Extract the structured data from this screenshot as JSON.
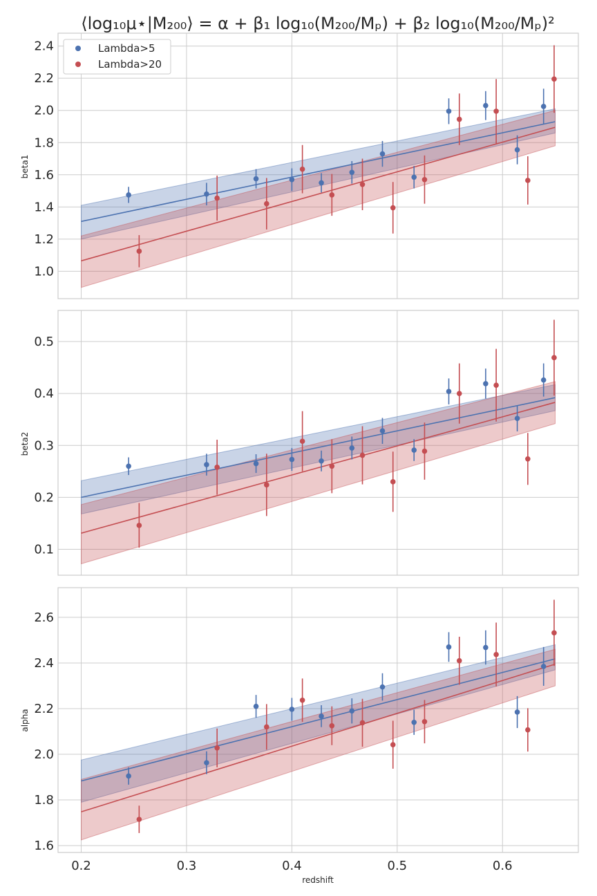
{
  "title": "⟨log₁₀μ⋆|M₂₀₀⟩ = α + β₁ log₁₀(M₂₀₀/Mₚ) + β₂ log₁₀(M₂₀₀/Mₚ)²",
  "xlabel": "redshift",
  "colors": {
    "blue": "#4c72b0",
    "red": "#c44e52",
    "grid": "#cccccc",
    "frame": "#cccccc"
  },
  "legend": {
    "position": "upper-left",
    "entries": [
      "Lambda>5",
      "Lambda>20"
    ]
  },
  "chart_data": [
    {
      "type": "scatter",
      "ylabel": "beta1",
      "xlim": [
        0.178,
        0.672
      ],
      "ylim": [
        0.83,
        2.48
      ],
      "xticks": [
        0.2,
        0.3,
        0.4,
        0.5,
        0.6
      ],
      "yticks": [
        1.0,
        1.2,
        1.4,
        1.6,
        1.8,
        2.0,
        2.2,
        2.4
      ],
      "series": [
        {
          "name": "Lambda>5",
          "color": "blue",
          "points": [
            {
              "x": 0.245,
              "y": 1.475,
              "err": 0.05
            },
            {
              "x": 0.319,
              "y": 1.48,
              "err": 0.07
            },
            {
              "x": 0.366,
              "y": 1.575,
              "err": 0.06
            },
            {
              "x": 0.4,
              "y": 1.57,
              "err": 0.07
            },
            {
              "x": 0.428,
              "y": 1.55,
              "err": 0.06
            },
            {
              "x": 0.457,
              "y": 1.615,
              "err": 0.07
            },
            {
              "x": 0.486,
              "y": 1.73,
              "err": 0.08
            },
            {
              "x": 0.516,
              "y": 1.585,
              "err": 0.07
            },
            {
              "x": 0.549,
              "y": 1.995,
              "err": 0.08
            },
            {
              "x": 0.584,
              "y": 2.03,
              "err": 0.09
            },
            {
              "x": 0.614,
              "y": 1.755,
              "err": 0.09
            },
            {
              "x": 0.639,
              "y": 2.025,
              "err": 0.11
            }
          ],
          "fit": {
            "x": [
              0.2,
              0.65
            ],
            "y": [
              1.31,
              1.93
            ]
          },
          "band": {
            "lower": [
              1.2,
              1.86
            ],
            "upper": [
              1.41,
              2.01
            ]
          }
        },
        {
          "name": "Lambda>20",
          "color": "red",
          "points": [
            {
              "x": 0.255,
              "y": 1.125,
              "err": 0.1
            },
            {
              "x": 0.329,
              "y": 1.455,
              "err": 0.14
            },
            {
              "x": 0.376,
              "y": 1.42,
              "err": 0.16
            },
            {
              "x": 0.41,
              "y": 1.635,
              "err": 0.15
            },
            {
              "x": 0.438,
              "y": 1.475,
              "err": 0.13
            },
            {
              "x": 0.467,
              "y": 1.54,
              "err": 0.16
            },
            {
              "x": 0.496,
              "y": 1.395,
              "err": 0.16
            },
            {
              "x": 0.526,
              "y": 1.57,
              "err": 0.15
            },
            {
              "x": 0.559,
              "y": 1.945,
              "err": 0.16
            },
            {
              "x": 0.594,
              "y": 1.995,
              "err": 0.2
            },
            {
              "x": 0.624,
              "y": 1.565,
              "err": 0.15
            },
            {
              "x": 0.649,
              "y": 2.195,
              "err": 0.21
            }
          ],
          "fit": {
            "x": [
              0.2,
              0.65
            ],
            "y": [
              1.065,
              1.895
            ]
          },
          "band": {
            "lower": [
              0.9,
              1.78
            ],
            "upper": [
              1.22,
              2.0
            ]
          }
        }
      ]
    },
    {
      "type": "scatter",
      "ylabel": "beta2",
      "xlim": [
        0.178,
        0.672
      ],
      "ylim": [
        0.05,
        0.56
      ],
      "xticks": [
        0.2,
        0.3,
        0.4,
        0.5,
        0.6
      ],
      "yticks": [
        0.1,
        0.2,
        0.3,
        0.4,
        0.5
      ],
      "series": [
        {
          "name": "Lambda>5",
          "color": "blue",
          "points": [
            {
              "x": 0.245,
              "y": 0.26,
              "err": 0.017
            },
            {
              "x": 0.319,
              "y": 0.263,
              "err": 0.021
            },
            {
              "x": 0.366,
              "y": 0.265,
              "err": 0.018
            },
            {
              "x": 0.4,
              "y": 0.273,
              "err": 0.022
            },
            {
              "x": 0.428,
              "y": 0.27,
              "err": 0.02
            },
            {
              "x": 0.457,
              "y": 0.295,
              "err": 0.022
            },
            {
              "x": 0.486,
              "y": 0.328,
              "err": 0.025
            },
            {
              "x": 0.516,
              "y": 0.291,
              "err": 0.021
            },
            {
              "x": 0.549,
              "y": 0.404,
              "err": 0.025
            },
            {
              "x": 0.584,
              "y": 0.419,
              "err": 0.029
            },
            {
              "x": 0.614,
              "y": 0.352,
              "err": 0.025
            },
            {
              "x": 0.639,
              "y": 0.426,
              "err": 0.032
            }
          ],
          "fit": {
            "x": [
              0.2,
              0.65
            ],
            "y": [
              0.2,
              0.392
            ]
          },
          "band": {
            "lower": [
              0.168,
              0.367
            ],
            "upper": [
              0.232,
              0.417
            ]
          }
        },
        {
          "name": "Lambda>20",
          "color": "red",
          "points": [
            {
              "x": 0.255,
              "y": 0.146,
              "err": 0.043
            },
            {
              "x": 0.329,
              "y": 0.258,
              "err": 0.053
            },
            {
              "x": 0.376,
              "y": 0.224,
              "err": 0.06
            },
            {
              "x": 0.41,
              "y": 0.308,
              "err": 0.058
            },
            {
              "x": 0.438,
              "y": 0.26,
              "err": 0.052
            },
            {
              "x": 0.467,
              "y": 0.281,
              "err": 0.056
            },
            {
              "x": 0.496,
              "y": 0.23,
              "err": 0.058
            },
            {
              "x": 0.526,
              "y": 0.289,
              "err": 0.055
            },
            {
              "x": 0.559,
              "y": 0.4,
              "err": 0.058
            },
            {
              "x": 0.594,
              "y": 0.416,
              "err": 0.07
            },
            {
              "x": 0.624,
              "y": 0.274,
              "err": 0.05
            },
            {
              "x": 0.649,
              "y": 0.469,
              "err": 0.073
            }
          ],
          "fit": {
            "x": [
              0.2,
              0.65
            ],
            "y": [
              0.131,
              0.383
            ]
          },
          "band": {
            "lower": [
              0.072,
              0.342
            ],
            "upper": [
              0.186,
              0.423
            ]
          }
        }
      ]
    },
    {
      "type": "scatter",
      "ylabel": "alpha",
      "xlim": [
        0.178,
        0.672
      ],
      "ylim": [
        1.57,
        2.73
      ],
      "xticks": [
        0.2,
        0.3,
        0.4,
        0.5,
        0.6
      ],
      "yticks": [
        1.6,
        1.8,
        2.0,
        2.2,
        2.4,
        2.6
      ],
      "xlabel": "redshift",
      "series": [
        {
          "name": "Lambda>5",
          "color": "blue",
          "points": [
            {
              "x": 0.245,
              "y": 1.905,
              "err": 0.038
            },
            {
              "x": 0.319,
              "y": 1.963,
              "err": 0.05
            },
            {
              "x": 0.366,
              "y": 2.21,
              "err": 0.05
            },
            {
              "x": 0.4,
              "y": 2.197,
              "err": 0.05
            },
            {
              "x": 0.428,
              "y": 2.167,
              "err": 0.048
            },
            {
              "x": 0.457,
              "y": 2.19,
              "err": 0.055
            },
            {
              "x": 0.486,
              "y": 2.295,
              "err": 0.06
            },
            {
              "x": 0.516,
              "y": 2.14,
              "err": 0.055
            },
            {
              "x": 0.549,
              "y": 2.47,
              "err": 0.065
            },
            {
              "x": 0.584,
              "y": 2.468,
              "err": 0.075
            },
            {
              "x": 0.614,
              "y": 2.185,
              "err": 0.07
            },
            {
              "x": 0.639,
              "y": 2.385,
              "err": 0.085
            }
          ],
          "fit": {
            "x": [
              0.2,
              0.65
            ],
            "y": [
              1.883,
              2.418
            ]
          },
          "band": {
            "lower": [
              1.79,
              2.37
            ],
            "upper": [
              1.975,
              2.48
            ]
          }
        },
        {
          "name": "Lambda>20",
          "color": "red",
          "points": [
            {
              "x": 0.255,
              "y": 1.715,
              "err": 0.06
            },
            {
              "x": 0.329,
              "y": 2.028,
              "err": 0.085
            },
            {
              "x": 0.376,
              "y": 2.12,
              "err": 0.1
            },
            {
              "x": 0.41,
              "y": 2.237,
              "err": 0.095
            },
            {
              "x": 0.438,
              "y": 2.125,
              "err": 0.085
            },
            {
              "x": 0.467,
              "y": 2.138,
              "err": 0.105
            },
            {
              "x": 0.496,
              "y": 2.042,
              "err": 0.105
            },
            {
              "x": 0.526,
              "y": 2.143,
              "err": 0.095
            },
            {
              "x": 0.559,
              "y": 2.41,
              "err": 0.105
            },
            {
              "x": 0.594,
              "y": 2.437,
              "err": 0.14
            },
            {
              "x": 0.624,
              "y": 2.107,
              "err": 0.095
            },
            {
              "x": 0.649,
              "y": 2.532,
              "err": 0.145
            }
          ],
          "fit": {
            "x": [
              0.2,
              0.65
            ],
            "y": [
              1.748,
              2.395
            ]
          },
          "band": {
            "lower": [
              1.625,
              2.3
            ],
            "upper": [
              1.89,
              2.46
            ]
          }
        }
      ]
    }
  ]
}
